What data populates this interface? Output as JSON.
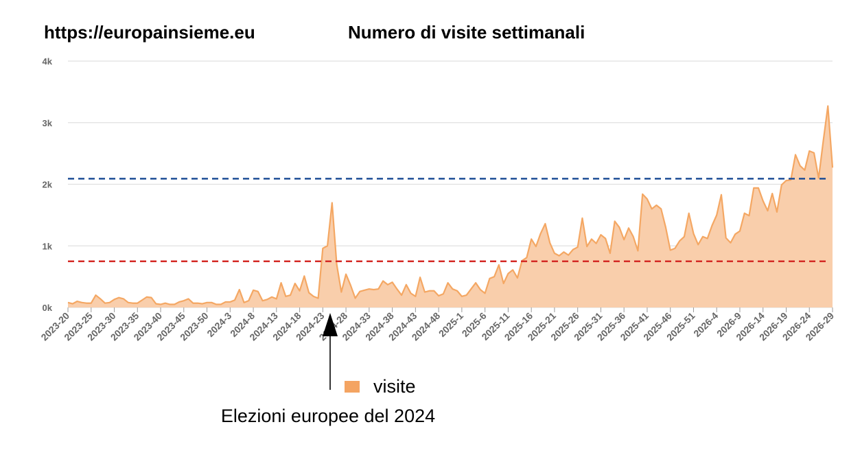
{
  "header": {
    "site_url": "https://europainsieme.eu",
    "title": "Numero di visite settimanali"
  },
  "legend": {
    "label": "visite"
  },
  "annotation": {
    "text": "Elezioni europee del 2024"
  },
  "colors": {
    "area_fill": "#f9ceab",
    "area_line": "#f4a763",
    "legend_swatch": "#f4a462",
    "blue_ref": "#1f4e96",
    "red_ref": "#d42a25",
    "grid": "#e0e0e0",
    "tick_text": "#666666"
  },
  "chart_data": {
    "type": "area",
    "title": "Numero di visite settimanali",
    "xlabel": "",
    "ylabel": "",
    "ylim": [
      0,
      4000
    ],
    "y_ticks": [
      0,
      1000,
      2000,
      3000,
      4000
    ],
    "y_tick_labels": [
      "0k",
      "1k",
      "2k",
      "3k",
      "4k"
    ],
    "x_tick_labels": [
      "2023-20",
      "2023-25",
      "2023-30",
      "2023-35",
      "2023-40",
      "2023-45",
      "2023-50",
      "2024-3",
      "2024-8",
      "2024-13",
      "2024-18",
      "2024-23",
      "2024-28",
      "2024-33",
      "2024-38",
      "2024-43",
      "2024-48",
      "2025-1",
      "2025-6",
      "2025-11",
      "2025-16",
      "2025-21",
      "2025-26",
      "2025-31",
      "2025-36",
      "2025-41",
      "2025-46",
      "2025-51",
      "2026-4",
      "2026-9",
      "2026-14",
      "2026-19",
      "2026-24",
      "2026-29"
    ],
    "grid": true,
    "legend_position": "bottom",
    "reference_lines": [
      2090,
      750
    ],
    "series": [
      {
        "name": "visite",
        "values": [
          80,
          60,
          100,
          80,
          70,
          70,
          200,
          140,
          70,
          80,
          130,
          160,
          140,
          80,
          70,
          70,
          120,
          170,
          160,
          60,
          50,
          70,
          50,
          50,
          90,
          110,
          140,
          70,
          70,
          60,
          80,
          80,
          50,
          50,
          90,
          90,
          120,
          290,
          80,
          110,
          280,
          260,
          110,
          130,
          170,
          140,
          400,
          180,
          200,
          390,
          270,
          510,
          240,
          180,
          150,
          960,
          1000,
          1700,
          700,
          250,
          540,
          360,
          150,
          260,
          280,
          300,
          290,
          300,
          430,
          370,
          410,
          300,
          200,
          370,
          230,
          180,
          490,
          250,
          270,
          270,
          190,
          220,
          400,
          300,
          270,
          180,
          200,
          300,
          400,
          290,
          230,
          470,
          500,
          690,
          390,
          550,
          610,
          480,
          760,
          810,
          1110,
          990,
          1200,
          1360,
          1050,
          880,
          840,
          900,
          850,
          940,
          980,
          1450,
          990,
          1110,
          1040,
          1180,
          1120,
          880,
          1400,
          1300,
          1100,
          1290,
          1150,
          920,
          1840,
          1760,
          1600,
          1660,
          1600,
          1300,
          930,
          960,
          1080,
          1150,
          1530,
          1200,
          1020,
          1150,
          1120,
          1330,
          1500,
          1830,
          1130,
          1050,
          1190,
          1240,
          1530,
          1490,
          1940,
          1940,
          1730,
          1570,
          1850,
          1550,
          1990,
          2060,
          2070,
          2480,
          2300,
          2230,
          2540,
          2510,
          2100,
          2700,
          3270,
          2270
        ]
      }
    ]
  }
}
